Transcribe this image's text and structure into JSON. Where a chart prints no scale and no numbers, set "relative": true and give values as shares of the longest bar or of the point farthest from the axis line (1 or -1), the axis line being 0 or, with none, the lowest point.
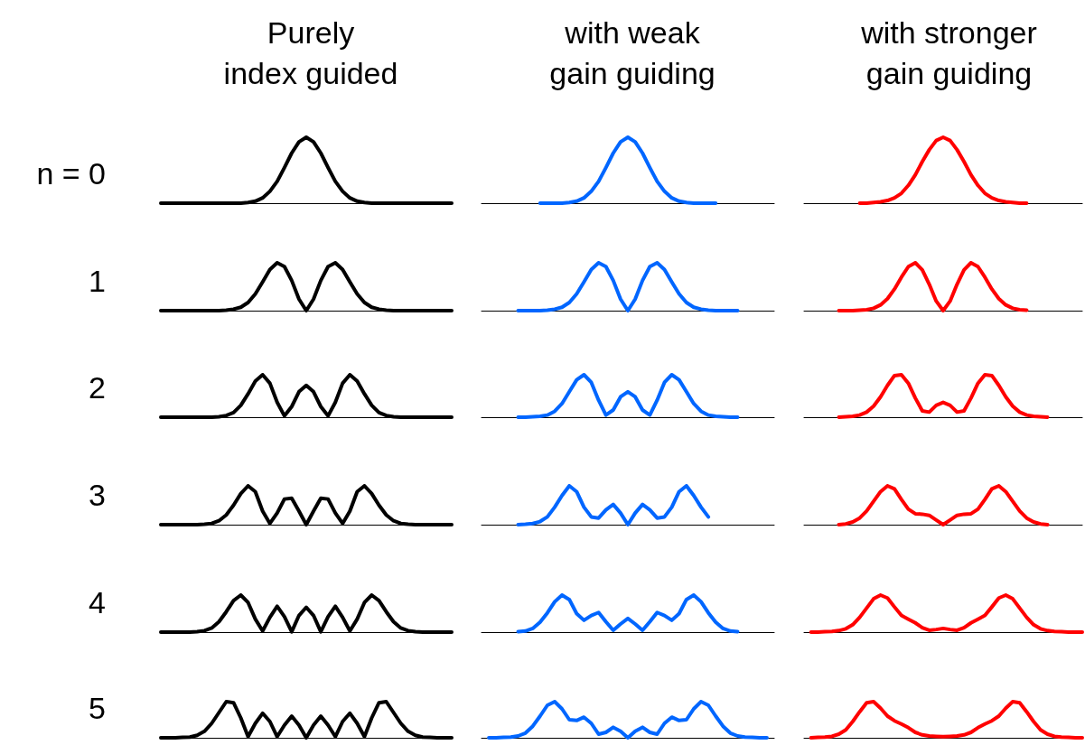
{
  "chart_data": [
    {
      "type": "line",
      "relative": true,
      "title": "Purely\nindex guided",
      "ylabel": "n = 0",
      "categories": [
        null,
        null,
        null,
        null,
        null,
        null,
        null,
        null,
        null,
        null,
        null,
        null,
        null,
        null,
        null,
        null,
        null,
        null,
        null,
        null,
        null,
        null,
        null,
        null,
        null,
        null,
        null,
        null,
        null,
        null,
        null,
        null,
        null,
        null,
        null,
        null,
        null,
        null,
        null,
        null,
        null
      ],
      "series": [
        {
          "color": "#000000",
          "values": [
            0,
            0,
            0,
            0,
            0,
            0,
            0,
            0,
            0,
            0,
            0,
            0,
            0.01,
            0.03,
            0.08,
            0.18,
            0.33,
            0.54,
            0.76,
            0.93,
            1,
            0.93,
            0.76,
            0.54,
            0.33,
            0.18,
            0.08,
            0.03,
            0.01,
            0,
            0,
            0,
            0,
            0,
            0,
            0,
            0,
            0,
            0,
            0,
            0
          ]
        }
      ]
    },
    {
      "type": "line",
      "relative": true,
      "title": "with weak\ngain guiding",
      "categories": [
        null,
        null,
        null,
        null,
        null,
        null,
        null,
        null,
        null,
        null,
        null,
        null,
        null,
        null,
        null,
        null,
        null,
        null,
        null,
        null,
        null,
        null,
        null,
        null,
        null,
        null,
        null,
        null,
        null,
        null,
        null,
        null,
        null,
        null,
        null,
        null,
        null,
        null,
        null,
        null,
        null
      ],
      "series": [
        {
          "color": "#0066ff",
          "values": [
            null,
            null,
            null,
            null,
            null,
            null,
            null,
            null,
            0,
            0,
            0,
            0,
            0.01,
            0.03,
            0.08,
            0.18,
            0.33,
            0.54,
            0.76,
            0.93,
            1,
            0.93,
            0.76,
            0.54,
            0.33,
            0.18,
            0.08,
            0.03,
            0.01,
            0,
            0,
            0,
            0,
            null,
            null,
            null,
            null,
            null,
            null,
            null,
            null
          ]
        }
      ]
    },
    {
      "type": "line",
      "relative": true,
      "title": "with stronger\ngain guiding",
      "categories": [
        null,
        null,
        null,
        null,
        null,
        null,
        null,
        null,
        null,
        null,
        null,
        null,
        null,
        null,
        null,
        null,
        null,
        null,
        null,
        null,
        null,
        null,
        null,
        null,
        null,
        null,
        null,
        null,
        null,
        null,
        null,
        null,
        null,
        null,
        null,
        null,
        null,
        null,
        null,
        null,
        null
      ],
      "series": [
        {
          "color": "#ff0000",
          "values": [
            null,
            null,
            null,
            null,
            null,
            null,
            null,
            null,
            0,
            0,
            0.01,
            0.02,
            0.04,
            0.08,
            0.15,
            0.27,
            0.43,
            0.63,
            0.81,
            0.95,
            1,
            0.95,
            0.81,
            0.63,
            0.43,
            0.27,
            0.15,
            0.08,
            0.04,
            0.02,
            0.01,
            0,
            0,
            null,
            null,
            null,
            null,
            null,
            null,
            null,
            null
          ]
        }
      ]
    },
    {
      "type": "line",
      "relative": true,
      "ylabel": "1",
      "categories": [
        null,
        null,
        null,
        null,
        null,
        null,
        null,
        null,
        null,
        null,
        null,
        null,
        null,
        null,
        null,
        null,
        null,
        null,
        null,
        null,
        null,
        null,
        null,
        null,
        null,
        null,
        null,
        null,
        null,
        null,
        null,
        null,
        null,
        null,
        null,
        null,
        null,
        null,
        null,
        null,
        null
      ],
      "series": [
        {
          "color": "#000000",
          "values": [
            0,
            0,
            0,
            0,
            0,
            0,
            0,
            0,
            0,
            0.01,
            0.03,
            0.07,
            0.17,
            0.35,
            0.6,
            0.86,
            1,
            0.92,
            0.63,
            0.24,
            0,
            0.24,
            0.63,
            0.92,
            1,
            0.86,
            0.6,
            0.35,
            0.17,
            0.07,
            0.03,
            0.01,
            0,
            0,
            0,
            0,
            0,
            0,
            0,
            0,
            0
          ]
        }
      ]
    },
    {
      "type": "line",
      "relative": true,
      "categories": [
        null,
        null,
        null,
        null,
        null,
        null,
        null,
        null,
        null,
        null,
        null,
        null,
        null,
        null,
        null,
        null,
        null,
        null,
        null,
        null,
        null,
        null,
        null,
        null,
        null,
        null,
        null,
        null,
        null,
        null,
        null,
        null,
        null,
        null,
        null,
        null,
        null,
        null,
        null,
        null,
        null
      ],
      "series": [
        {
          "color": "#0066ff",
          "values": [
            null,
            null,
            null,
            null,
            null,
            0,
            0,
            0,
            0,
            0.01,
            0.03,
            0.07,
            0.17,
            0.35,
            0.6,
            0.86,
            1,
            0.92,
            0.63,
            0.24,
            0,
            0.24,
            0.63,
            0.92,
            1,
            0.86,
            0.6,
            0.35,
            0.17,
            0.07,
            0.03,
            0.01,
            0,
            0,
            0,
            0,
            null,
            null,
            null,
            null,
            null
          ]
        }
      ]
    },
    {
      "type": "line",
      "relative": true,
      "categories": [
        null,
        null,
        null,
        null,
        null,
        null,
        null,
        null,
        null,
        null,
        null,
        null,
        null,
        null,
        null,
        null,
        null,
        null,
        null,
        null,
        null,
        null,
        null,
        null,
        null,
        null,
        null,
        null,
        null,
        null,
        null,
        null,
        null,
        null,
        null,
        null,
        null,
        null,
        null,
        null,
        null
      ],
      "series": [
        {
          "color": "#ff0000",
          "values": [
            null,
            null,
            null,
            null,
            null,
            0,
            0,
            0,
            0.01,
            0.02,
            0.05,
            0.12,
            0.25,
            0.45,
            0.7,
            0.92,
            1,
            0.85,
            0.55,
            0.2,
            0,
            0.2,
            0.55,
            0.85,
            1,
            0.92,
            0.7,
            0.45,
            0.25,
            0.12,
            0.05,
            0.02,
            0.01,
            null,
            null,
            null,
            null,
            null,
            null,
            null,
            null
          ]
        }
      ]
    },
    {
      "type": "line",
      "relative": true,
      "ylabel": "2",
      "categories": [
        null,
        null,
        null,
        null,
        null,
        null,
        null,
        null,
        null,
        null,
        null,
        null,
        null,
        null,
        null,
        null,
        null,
        null,
        null,
        null,
        null,
        null,
        null,
        null,
        null,
        null,
        null,
        null,
        null,
        null,
        null,
        null,
        null,
        null,
        null,
        null,
        null,
        null,
        null,
        null,
        null
      ],
      "series": [
        {
          "color": "#000000",
          "values": [
            0,
            0,
            0,
            0,
            0,
            0,
            0,
            0,
            0.01,
            0.04,
            0.11,
            0.28,
            0.55,
            0.85,
            1,
            0.8,
            0.35,
            0.03,
            0.25,
            0.6,
            0.75,
            0.6,
            0.25,
            0.03,
            0.35,
            0.8,
            1,
            0.85,
            0.55,
            0.28,
            0.11,
            0.04,
            0.01,
            0,
            0,
            0,
            0,
            0,
            0,
            0,
            0
          ]
        }
      ]
    },
    {
      "type": "line",
      "relative": true,
      "categories": [
        null,
        null,
        null,
        null,
        null,
        null,
        null,
        null,
        null,
        null,
        null,
        null,
        null,
        null,
        null,
        null,
        null,
        null,
        null,
        null,
        null,
        null,
        null,
        null,
        null,
        null,
        null,
        null,
        null,
        null,
        null,
        null,
        null,
        null,
        null,
        null,
        null,
        null,
        null,
        null,
        null
      ],
      "series": [
        {
          "color": "#0066ff",
          "values": [
            null,
            null,
            null,
            null,
            null,
            0,
            0,
            0.01,
            0.02,
            0.05,
            0.14,
            0.32,
            0.6,
            0.88,
            1,
            0.82,
            0.4,
            0.05,
            0.17,
            0.48,
            0.6,
            0.48,
            0.17,
            0.05,
            0.4,
            0.82,
            1,
            0.88,
            0.6,
            0.32,
            0.14,
            0.05,
            0.02,
            0.01,
            0,
            0,
            null,
            null,
            null,
            null,
            null
          ]
        }
      ]
    },
    {
      "type": "line",
      "relative": true,
      "categories": [
        null,
        null,
        null,
        null,
        null,
        null,
        null,
        null,
        null,
        null,
        null,
        null,
        null,
        null,
        null,
        null,
        null,
        null,
        null,
        null,
        null,
        null,
        null,
        null,
        null,
        null,
        null,
        null,
        null,
        null,
        null,
        null,
        null,
        null,
        null,
        null,
        null,
        null,
        null,
        null,
        null
      ],
      "series": [
        {
          "color": "#ff0000",
          "values": [
            null,
            null,
            null,
            null,
            null,
            0,
            0.01,
            0.02,
            0.05,
            0.12,
            0.26,
            0.48,
            0.75,
            0.98,
            1,
            0.8,
            0.45,
            0.15,
            0.12,
            0.28,
            0.35,
            0.28,
            0.12,
            0.15,
            0.45,
            0.8,
            1,
            0.98,
            0.75,
            0.48,
            0.26,
            0.12,
            0.05,
            0.02,
            0.01,
            0,
            null,
            null,
            null,
            null,
            null
          ]
        }
      ]
    },
    {
      "type": "line",
      "relative": true,
      "ylabel": "3",
      "categories": [
        null,
        null,
        null,
        null,
        null,
        null,
        null,
        null,
        null,
        null,
        null,
        null,
        null,
        null,
        null,
        null,
        null,
        null,
        null,
        null,
        null,
        null,
        null,
        null,
        null,
        null,
        null,
        null,
        null,
        null,
        null,
        null,
        null,
        null,
        null,
        null,
        null,
        null,
        null,
        null,
        null
      ],
      "series": [
        {
          "color": "#000000",
          "values": [
            0,
            0,
            0,
            0,
            0,
            0,
            0.01,
            0.03,
            0.1,
            0.25,
            0.5,
            0.8,
            1,
            0.85,
            0.35,
            0.03,
            0.3,
            0.66,
            0.68,
            0.35,
            0,
            0.35,
            0.68,
            0.66,
            0.3,
            0.03,
            0.35,
            0.85,
            1,
            0.8,
            0.5,
            0.25,
            0.1,
            0.03,
            0.01,
            0,
            0,
            0,
            0,
            0,
            0
          ]
        }
      ]
    },
    {
      "type": "line",
      "relative": true,
      "categories": [
        null,
        null,
        null,
        null,
        null,
        null,
        null,
        null,
        null,
        null,
        null,
        null,
        null,
        null,
        null,
        null,
        null,
        null,
        null,
        null,
        null,
        null,
        null,
        null,
        null,
        null,
        null,
        null,
        null,
        null,
        null,
        null,
        null,
        null,
        null,
        null,
        null,
        null,
        null,
        null,
        null
      ],
      "series": [
        {
          "color": "#0066ff",
          "values": [
            null,
            null,
            null,
            null,
            null,
            0,
            0.01,
            0.03,
            0.08,
            0.2,
            0.45,
            0.75,
            1,
            0.85,
            0.45,
            0.2,
            0.17,
            0.38,
            0.52,
            0.3,
            0,
            0.3,
            0.52,
            0.38,
            0.17,
            0.2,
            0.45,
            0.85,
            1,
            0.75,
            0.45,
            0.2,
            null,
            null,
            null,
            null,
            null,
            null,
            null,
            null,
            null
          ]
        }
      ]
    },
    {
      "type": "line",
      "relative": true,
      "categories": [
        null,
        null,
        null,
        null,
        null,
        null,
        null,
        null,
        null,
        null,
        null,
        null,
        null,
        null,
        null,
        null,
        null,
        null,
        null,
        null,
        null,
        null,
        null,
        null,
        null,
        null,
        null,
        null,
        null,
        null,
        null,
        null,
        null,
        null,
        null,
        null,
        null,
        null,
        null,
        null,
        null
      ],
      "series": [
        {
          "color": "#ff0000",
          "values": [
            null,
            null,
            null,
            null,
            null,
            0,
            0.02,
            0.07,
            0.17,
            0.35,
            0.6,
            0.85,
            1,
            0.92,
            0.65,
            0.4,
            0.28,
            0.27,
            0.24,
            0.12,
            0,
            0.12,
            0.24,
            0.27,
            0.28,
            0.4,
            0.65,
            0.92,
            1,
            0.85,
            0.6,
            0.35,
            0.17,
            0.07,
            0.02,
            0,
            null,
            null,
            null,
            null,
            null
          ]
        }
      ]
    },
    {
      "type": "line",
      "relative": true,
      "ylabel": "4",
      "categories": [
        null,
        null,
        null,
        null,
        null,
        null,
        null,
        null,
        null,
        null,
        null,
        null,
        null,
        null,
        null,
        null,
        null,
        null,
        null,
        null,
        null,
        null,
        null,
        null,
        null,
        null,
        null,
        null,
        null,
        null,
        null,
        null,
        null,
        null,
        null,
        null,
        null,
        null,
        null,
        null,
        null
      ],
      "series": [
        {
          "color": "#000000",
          "values": [
            0,
            0,
            0,
            0,
            0,
            0.01,
            0.04,
            0.11,
            0.28,
            0.55,
            0.85,
            1,
            0.8,
            0.35,
            0.03,
            0.4,
            0.7,
            0.42,
            0.01,
            0.45,
            0.67,
            0.45,
            0.01,
            0.42,
            0.7,
            0.4,
            0.03,
            0.35,
            0.8,
            1,
            0.85,
            0.55,
            0.28,
            0.11,
            0.04,
            0.01,
            0,
            0,
            0,
            0,
            0
          ]
        }
      ]
    },
    {
      "type": "line",
      "relative": true,
      "categories": [
        null,
        null,
        null,
        null,
        null,
        null,
        null,
        null,
        null,
        null,
        null,
        null,
        null,
        null,
        null,
        null,
        null,
        null,
        null,
        null,
        null,
        null,
        null,
        null,
        null,
        null,
        null,
        null,
        null,
        null,
        null,
        null,
        null,
        null,
        null,
        null,
        null,
        null,
        null,
        null,
        null
      ],
      "series": [
        {
          "color": "#0066ff",
          "values": [
            null,
            null,
            null,
            null,
            null,
            0.01,
            0.03,
            0.1,
            0.27,
            0.52,
            0.82,
            1,
            0.88,
            0.5,
            0.32,
            0.45,
            0.53,
            0.28,
            0.05,
            0.22,
            0.37,
            0.22,
            0.05,
            0.28,
            0.53,
            0.45,
            0.32,
            0.5,
            0.88,
            1,
            0.82,
            0.52,
            0.27,
            0.1,
            0.03,
            0.01,
            null,
            null,
            null,
            null,
            null
          ]
        }
      ]
    },
    {
      "type": "line",
      "relative": true,
      "categories": [
        null,
        null,
        null,
        null,
        null,
        null,
        null,
        null,
        null,
        null,
        null,
        null,
        null,
        null,
        null,
        null,
        null,
        null,
        null,
        null,
        null,
        null,
        null,
        null,
        null,
        null,
        null,
        null,
        null,
        null,
        null,
        null,
        null,
        null,
        null,
        null,
        null,
        null,
        null,
        null,
        null
      ],
      "series": [
        {
          "color": "#ff0000",
          "values": [
            null,
            0,
            0,
            0.01,
            0.02,
            0.04,
            0.09,
            0.2,
            0.4,
            0.65,
            0.9,
            1,
            0.92,
            0.68,
            0.45,
            0.35,
            0.25,
            0.12,
            0.05,
            0.07,
            0.1,
            0.07,
            0.05,
            0.12,
            0.25,
            0.35,
            0.45,
            0.68,
            0.92,
            1,
            0.9,
            0.65,
            0.4,
            0.2,
            0.09,
            0.04,
            0.02,
            0.01,
            0,
            0,
            0
          ]
        }
      ]
    },
    {
      "type": "line",
      "relative": true,
      "ylabel": "5",
      "categories": [
        null,
        null,
        null,
        null,
        null,
        null,
        null,
        null,
        null,
        null,
        null,
        null,
        null,
        null,
        null,
        null,
        null,
        null,
        null,
        null,
        null,
        null,
        null,
        null,
        null,
        null,
        null,
        null,
        null,
        null,
        null,
        null,
        null,
        null,
        null,
        null,
        null,
        null,
        null,
        null,
        null
      ],
      "series": [
        {
          "color": "#000000",
          "values": [
            0,
            0,
            0,
            0.01,
            0.02,
            0.07,
            0.18,
            0.4,
            0.7,
            1,
            0.97,
            0.55,
            0.03,
            0.4,
            0.68,
            0.45,
            0.03,
            0.35,
            0.6,
            0.35,
            0,
            0.35,
            0.6,
            0.35,
            0.03,
            0.45,
            0.68,
            0.4,
            0.03,
            0.55,
            0.97,
            1,
            0.7,
            0.4,
            0.18,
            0.07,
            0.02,
            0.01,
            0,
            0,
            0
          ]
        }
      ]
    },
    {
      "type": "line",
      "relative": true,
      "categories": [
        null,
        null,
        null,
        null,
        null,
        null,
        null,
        null,
        null,
        null,
        null,
        null,
        null,
        null,
        null,
        null,
        null,
        null,
        null,
        null,
        null,
        null,
        null,
        null,
        null,
        null,
        null,
        null,
        null,
        null,
        null,
        null,
        null,
        null,
        null,
        null,
        null,
        null,
        null,
        null,
        null
      ],
      "series": [
        {
          "color": "#0066ff",
          "values": [
            null,
            0,
            0,
            0.01,
            0.02,
            0.05,
            0.13,
            0.32,
            0.6,
            0.9,
            1,
            0.8,
            0.5,
            0.48,
            0.57,
            0.4,
            0.1,
            0.15,
            0.29,
            0.18,
            0,
            0.18,
            0.29,
            0.15,
            0.1,
            0.4,
            0.57,
            0.48,
            0.5,
            0.8,
            1,
            0.9,
            0.6,
            0.32,
            0.13,
            0.05,
            0.02,
            0.01,
            0,
            0,
            null
          ]
        }
      ]
    },
    {
      "type": "line",
      "relative": true,
      "categories": [
        null,
        null,
        null,
        null,
        null,
        null,
        null,
        null,
        null,
        null,
        null,
        null,
        null,
        null,
        null,
        null,
        null,
        null,
        null,
        null,
        null,
        null,
        null,
        null,
        null,
        null,
        null,
        null,
        null,
        null,
        null,
        null,
        null,
        null,
        null,
        null,
        null,
        null,
        null,
        null,
        null
      ],
      "series": [
        {
          "color": "#ff0000",
          "values": [
            null,
            0,
            0.01,
            0.02,
            0.04,
            0.1,
            0.22,
            0.45,
            0.72,
            0.97,
            1,
            0.82,
            0.6,
            0.47,
            0.38,
            0.28,
            0.15,
            0.08,
            0.05,
            0.04,
            0.03,
            0.04,
            0.05,
            0.08,
            0.15,
            0.28,
            0.38,
            0.47,
            0.6,
            0.82,
            1,
            0.97,
            0.72,
            0.45,
            0.22,
            0.1,
            0.04,
            0.02,
            0.01,
            0,
            0
          ]
        }
      ]
    }
  ]
}
